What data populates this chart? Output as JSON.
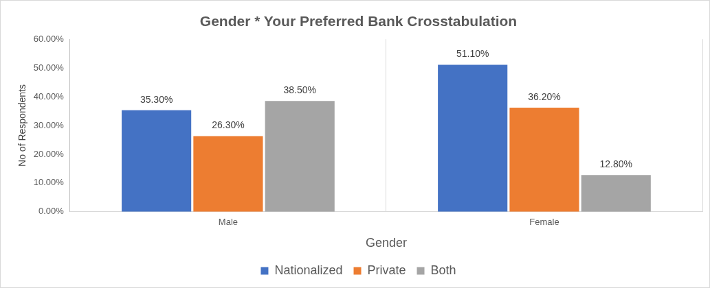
{
  "chart_data": {
    "type": "bar",
    "title": "Gender * Your Preferred Bank Crosstabulation",
    "xlabel": "Gender",
    "ylabel": "No of Respondents",
    "categories": [
      "Male",
      "Female"
    ],
    "series": [
      {
        "name": "Nationalized",
        "color": "#4472c4",
        "values": [
          35.3,
          51.1
        ],
        "value_labels": [
          "35.30%",
          "51.10%"
        ]
      },
      {
        "name": "Private",
        "color": "#ed7d31",
        "values": [
          26.3,
          36.2
        ],
        "value_labels": [
          "26.30%",
          "36.20%"
        ]
      },
      {
        "name": "Both",
        "color": "#a5a5a5",
        "values": [
          38.5,
          12.8
        ],
        "value_labels": [
          "38.50%",
          "12.80%"
        ]
      }
    ],
    "ylim": [
      0,
      60
    ],
    "yticks": [
      {
        "value": 0,
        "label": "0.00%"
      },
      {
        "value": 10,
        "label": "10.00%"
      },
      {
        "value": 20,
        "label": "20.00%"
      },
      {
        "value": 30,
        "label": "30.00%"
      },
      {
        "value": 40,
        "label": "40.00%"
      },
      {
        "value": 50,
        "label": "50.00%"
      },
      {
        "value": 60,
        "label": "60.00%"
      }
    ],
    "grid": "x",
    "legend": "bottom"
  }
}
